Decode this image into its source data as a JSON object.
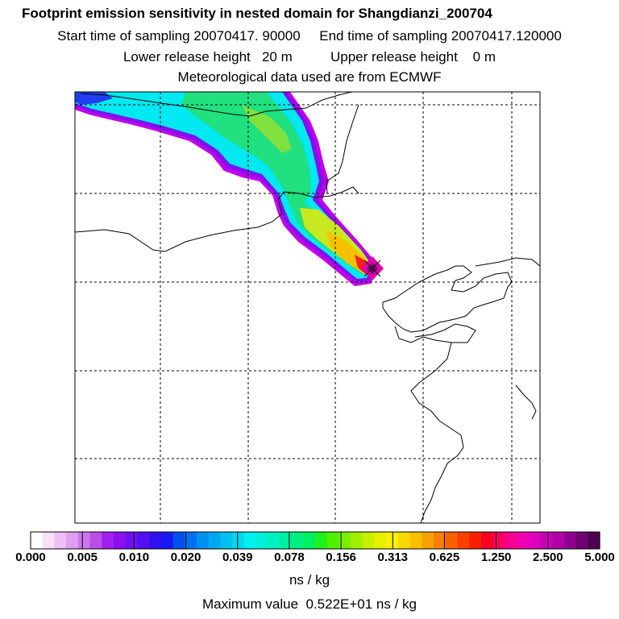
{
  "header": {
    "title": "Footprint emission sensitivity in nested domain for Shangdianzi_200704",
    "sampling": "Start time of sampling 20070417. 90000     End time of sampling 20070417.120000",
    "release": "Lower release height   20 m          Upper release height    0 m",
    "meteo": "Meteorological data used are from ECMWF"
  },
  "colorbar": {
    "ticks": [
      "0.000",
      "0.005",
      "0.010",
      "0.020",
      "0.039",
      "0.078",
      "0.156",
      "0.313",
      "0.625",
      "1.250",
      "2.500",
      "5.000"
    ],
    "colors": [
      "#ffffff",
      "#f6e0fa",
      "#ecc0f5",
      "#e0a0f0",
      "#cc78ec",
      "#b850e8",
      "#a020f0",
      "#8c10f0",
      "#7010f0",
      "#5010f0",
      "#3010f0",
      "#1818f0",
      "#0050f0",
      "#0070f0",
      "#0090f0",
      "#00a8f0",
      "#00c0f0",
      "#00d8f0",
      "#00f0f0",
      "#00f0d8",
      "#00f0c0",
      "#00f0a0",
      "#00f080",
      "#00f060",
      "#20f020",
      "#50f000",
      "#78f000",
      "#a0f000",
      "#c8f000",
      "#e8f000",
      "#f8f000",
      "#f8d800",
      "#f8c000",
      "#f8a000",
      "#f88000",
      "#f86000",
      "#f84000",
      "#f82000",
      "#f80020",
      "#f80060",
      "#f80090",
      "#f000b0",
      "#e000c0",
      "#c800b8",
      "#b000a8",
      "#900090",
      "#700070",
      "#500050"
    ],
    "units": "ns / kg",
    "max_value_text": "Maximum value  0.522E+01 ns / kg"
  },
  "map": {
    "receptor": "Shangdianzi"
  }
}
